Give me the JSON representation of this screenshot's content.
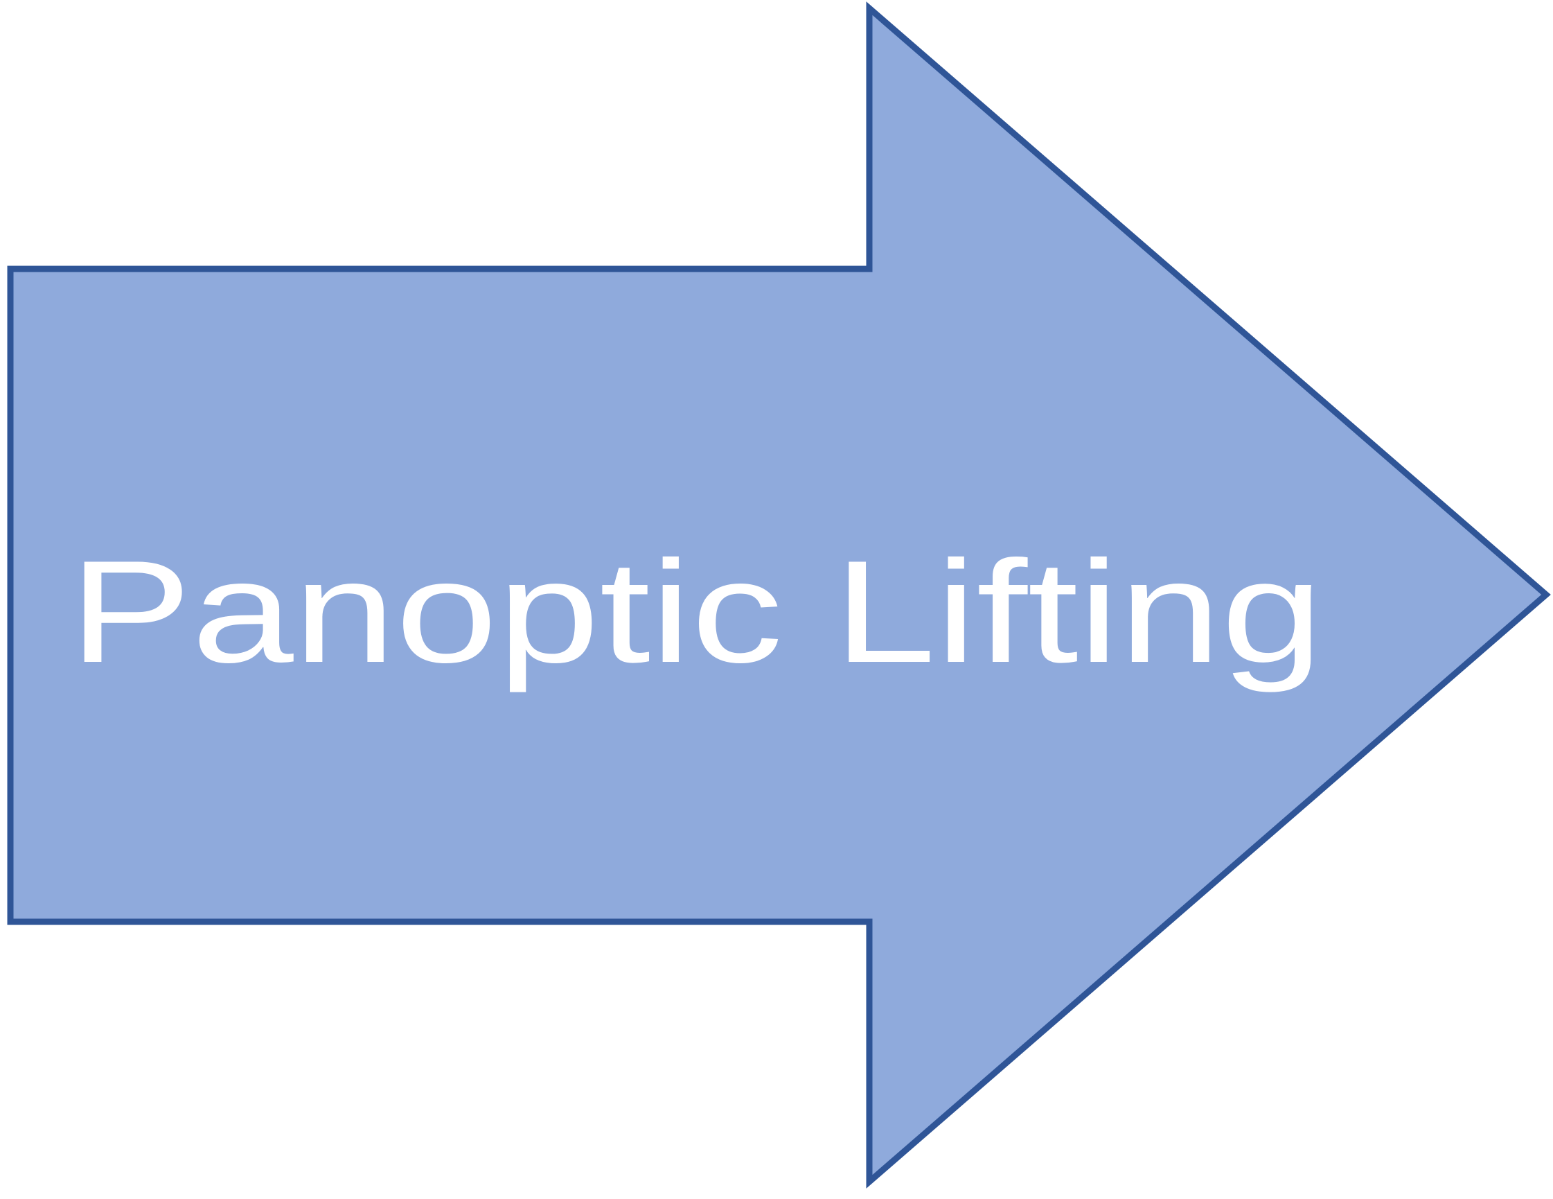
{
  "diagram": {
    "label": "Panoptic Lifting",
    "shape": "right-arrow",
    "colors": {
      "fill": "#8FAADC",
      "stroke": "#2F5597",
      "text": "#FFFFFF",
      "background": "#FFFFFF"
    }
  }
}
